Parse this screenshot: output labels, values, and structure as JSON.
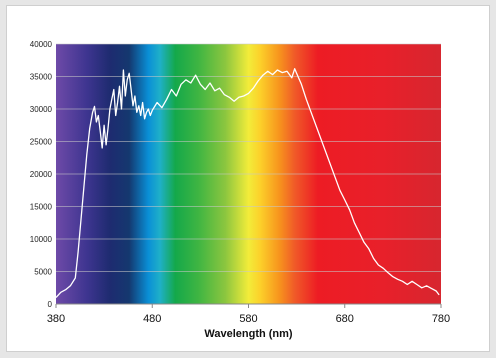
{
  "chart_data": {
    "type": "line",
    "title": "",
    "xlabel": "Wavelength (nm)",
    "ylabel": "",
    "xlim": [
      380,
      780
    ],
    "ylim": [
      0,
      40000
    ],
    "x_ticks": [
      "380",
      "480",
      "580",
      "680",
      "780"
    ],
    "y_ticks": [
      "0",
      "5000",
      "10000",
      "15000",
      "20000",
      "25000",
      "30000",
      "35000",
      "40000"
    ],
    "grid": "horizontal",
    "legend": "none",
    "background": "visible-spectrum gradient",
    "line_color": "#ffffff",
    "series": [
      {
        "x": [
          380,
          385,
          390,
          395,
          400,
          403,
          406,
          409,
          412,
          415,
          418,
          420,
          422,
          424,
          426,
          428,
          430,
          432,
          434,
          436,
          438,
          440,
          442,
          444,
          446,
          448,
          450,
          452,
          454,
          456,
          458,
          460,
          462,
          464,
          466,
          468,
          470,
          472,
          474,
          476,
          478,
          480,
          485,
          490,
          495,
          500,
          505,
          510,
          515,
          520,
          525,
          530,
          535,
          540,
          545,
          550,
          555,
          560,
          565,
          570,
          575,
          580,
          585,
          590,
          595,
          600,
          605,
          610,
          615,
          620,
          625,
          628,
          630,
          635,
          640,
          645,
          650,
          655,
          660,
          665,
          670,
          675,
          680,
          685,
          690,
          695,
          700,
          705,
          710,
          715,
          720,
          725,
          730,
          735,
          740,
          745,
          750,
          755,
          760,
          765,
          770,
          775,
          778
        ],
        "y": [
          1000,
          1800,
          2200,
          2800,
          4000,
          8000,
          13000,
          18000,
          23000,
          27000,
          29500,
          30400,
          28000,
          29000,
          26500,
          24000,
          27500,
          24500,
          27000,
          30000,
          31500,
          33000,
          29000,
          31000,
          33500,
          30000,
          36000,
          32000,
          34500,
          35500,
          33000,
          30500,
          32000,
          29500,
          30500,
          29000,
          31000,
          28500,
          29500,
          30000,
          29000,
          29800,
          31000,
          30200,
          31500,
          33000,
          32000,
          33800,
          34500,
          34000,
          35200,
          33800,
          33000,
          34000,
          32800,
          33200,
          32200,
          31800,
          31200,
          31800,
          32000,
          32400,
          33200,
          34300,
          35200,
          35800,
          35300,
          36000,
          35600,
          35800,
          34800,
          36200,
          35500,
          33800,
          31500,
          29500,
          27500,
          25500,
          23500,
          21500,
          19500,
          17500,
          16000,
          14500,
          12500,
          11000,
          9500,
          8500,
          7000,
          6000,
          5500,
          4800,
          4200,
          3800,
          3500,
          3000,
          3500,
          3000,
          2500,
          2800,
          2400,
          2000,
          1400
        ]
      }
    ]
  }
}
